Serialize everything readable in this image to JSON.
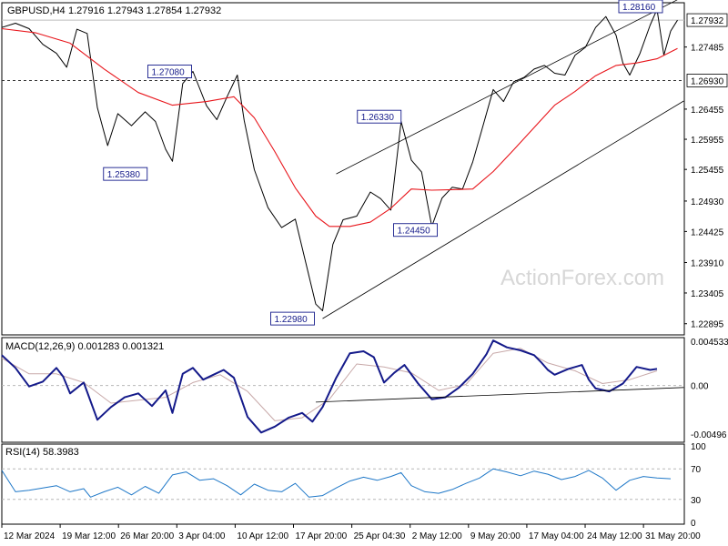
{
  "chart_data": {
    "type": "line",
    "symbol": "GBPUSD,H4",
    "ohlc_header": "1.27916 1.27943 1.27854 1.27932",
    "watermark": "ActionForex.com",
    "price_panel": {
      "ylim": [
        1.2271,
        1.2822
      ],
      "y_ticks": [
        "1.27932",
        "1.27485",
        "1.26930",
        "1.26455",
        "1.25955",
        "1.25455",
        "1.24930",
        "1.24425",
        "1.23910",
        "1.23405",
        "1.22895"
      ],
      "current_price": 1.27932,
      "current_price_label": "1.27932",
      "level_line": 1.2693,
      "level_line_label": "1.26930",
      "callouts": [
        {
          "label": "1.27080",
          "value": 1.2708,
          "t": 0.27
        },
        {
          "label": "1.25380",
          "value": 1.2538,
          "t": 0.205
        },
        {
          "label": "1.22980",
          "value": 1.2298,
          "t": 0.45
        },
        {
          "label": "1.26330",
          "value": 1.2633,
          "t": 0.577
        },
        {
          "label": "1.24450",
          "value": 1.2445,
          "t": 0.63
        },
        {
          "label": "1.28160",
          "value": 1.2816,
          "t": 0.96
        }
      ],
      "channel_upper": [
        [
          0.49,
          1.2538
        ],
        [
          0.99,
          1.2827
        ]
      ],
      "channel_lower": [
        [
          0.47,
          1.2298
        ],
        [
          0.999,
          1.2659
        ]
      ],
      "price_series": [
        [
          0.0,
          1.2781
        ],
        [
          0.02,
          1.2788
        ],
        [
          0.04,
          1.2779
        ],
        [
          0.06,
          1.2753
        ],
        [
          0.08,
          1.2738
        ],
        [
          0.095,
          1.2715
        ],
        [
          0.11,
          1.2778
        ],
        [
          0.125,
          1.2771
        ],
        [
          0.14,
          1.2648
        ],
        [
          0.155,
          1.2585
        ],
        [
          0.17,
          1.2638
        ],
        [
          0.19,
          1.2618
        ],
        [
          0.21,
          1.2641
        ],
        [
          0.225,
          1.2625
        ],
        [
          0.24,
          1.2579
        ],
        [
          0.25,
          1.2559
        ],
        [
          0.265,
          1.2688
        ],
        [
          0.28,
          1.2708
        ],
        [
          0.3,
          1.2651
        ],
        [
          0.315,
          1.2628
        ],
        [
          0.33,
          1.2666
        ],
        [
          0.345,
          1.2702
        ],
        [
          0.355,
          1.2627
        ],
        [
          0.37,
          1.2545
        ],
        [
          0.39,
          1.2482
        ],
        [
          0.41,
          1.2449
        ],
        [
          0.43,
          1.2463
        ],
        [
          0.445,
          1.2392
        ],
        [
          0.46,
          1.2322
        ],
        [
          0.47,
          1.2311
        ],
        [
          0.485,
          1.2421
        ],
        [
          0.5,
          1.2462
        ],
        [
          0.52,
          1.2468
        ],
        [
          0.54,
          1.2508
        ],
        [
          0.555,
          1.2497
        ],
        [
          0.57,
          1.2478
        ],
        [
          0.585,
          1.2625
        ],
        [
          0.6,
          1.2561
        ],
        [
          0.615,
          1.2541
        ],
        [
          0.63,
          1.2451
        ],
        [
          0.645,
          1.2498
        ],
        [
          0.66,
          1.2516
        ],
        [
          0.675,
          1.2513
        ],
        [
          0.69,
          1.2558
        ],
        [
          0.705,
          1.2618
        ],
        [
          0.72,
          1.2678
        ],
        [
          0.735,
          1.2658
        ],
        [
          0.75,
          1.2691
        ],
        [
          0.765,
          1.2698
        ],
        [
          0.78,
          1.2712
        ],
        [
          0.795,
          1.2718
        ],
        [
          0.81,
          1.2705
        ],
        [
          0.825,
          1.2702
        ],
        [
          0.84,
          1.2735
        ],
        [
          0.855,
          1.2748
        ],
        [
          0.87,
          1.2781
        ],
        [
          0.885,
          1.2799
        ],
        [
          0.9,
          1.2768
        ],
        [
          0.91,
          1.2722
        ],
        [
          0.92,
          1.2702
        ],
        [
          0.935,
          1.2738
        ],
        [
          0.95,
          1.2785
        ],
        [
          0.96,
          1.2811
        ],
        [
          0.97,
          1.2735
        ],
        [
          0.98,
          1.2775
        ],
        [
          0.99,
          1.2793
        ]
      ],
      "ma_series": [
        [
          0.0,
          1.2779
        ],
        [
          0.05,
          1.2772
        ],
        [
          0.1,
          1.2755
        ],
        [
          0.15,
          1.2712
        ],
        [
          0.2,
          1.2673
        ],
        [
          0.25,
          1.2652
        ],
        [
          0.3,
          1.2658
        ],
        [
          0.34,
          1.2666
        ],
        [
          0.37,
          1.2631
        ],
        [
          0.4,
          1.2575
        ],
        [
          0.43,
          1.2515
        ],
        [
          0.46,
          1.2468
        ],
        [
          0.48,
          1.2451
        ],
        [
          0.51,
          1.2451
        ],
        [
          0.54,
          1.2458
        ],
        [
          0.57,
          1.2481
        ],
        [
          0.6,
          1.2513
        ],
        [
          0.63,
          1.2511
        ],
        [
          0.66,
          1.2512
        ],
        [
          0.69,
          1.2513
        ],
        [
          0.72,
          1.2542
        ],
        [
          0.75,
          1.2578
        ],
        [
          0.78,
          1.2615
        ],
        [
          0.81,
          1.2652
        ],
        [
          0.84,
          1.2675
        ],
        [
          0.87,
          1.2701
        ],
        [
          0.9,
          1.2718
        ],
        [
          0.93,
          1.2722
        ],
        [
          0.96,
          1.2729
        ],
        [
          0.99,
          1.2746
        ]
      ]
    },
    "macd_panel": {
      "label": "MACD(12,26,9) 0.001283 0.001321",
      "ylim": [
        -0.0058,
        0.0049
      ],
      "y_ticks": [
        "0.004533",
        "0.00",
        "-0.00496"
      ],
      "zero_label": "0.00",
      "macd_series": [
        [
          0.0,
          0.0031
        ],
        [
          0.02,
          0.0018
        ],
        [
          0.04,
          -0.0001
        ],
        [
          0.06,
          0.0004
        ],
        [
          0.08,
          0.0018
        ],
        [
          0.09,
          0.0009
        ],
        [
          0.1,
          -0.0008
        ],
        [
          0.12,
          0.0003
        ],
        [
          0.14,
          -0.0035
        ],
        [
          0.16,
          -0.0022
        ],
        [
          0.18,
          -0.0012
        ],
        [
          0.2,
          -0.0008
        ],
        [
          0.22,
          -0.0021
        ],
        [
          0.24,
          -0.0005
        ],
        [
          0.25,
          -0.0028
        ],
        [
          0.265,
          0.0012
        ],
        [
          0.28,
          0.0018
        ],
        [
          0.295,
          0.0006
        ],
        [
          0.31,
          0.0011
        ],
        [
          0.325,
          0.0016
        ],
        [
          0.34,
          0.0008
        ],
        [
          0.36,
          -0.0032
        ],
        [
          0.38,
          -0.0048
        ],
        [
          0.4,
          -0.0042
        ],
        [
          0.42,
          -0.0033
        ],
        [
          0.44,
          -0.0028
        ],
        [
          0.455,
          -0.0037
        ],
        [
          0.47,
          -0.0022
        ],
        [
          0.49,
          0.0008
        ],
        [
          0.51,
          0.0033
        ],
        [
          0.53,
          0.0035
        ],
        [
          0.545,
          0.0029
        ],
        [
          0.56,
          0.0003
        ],
        [
          0.575,
          0.0013
        ],
        [
          0.59,
          0.0021
        ],
        [
          0.61,
          0.0002
        ],
        [
          0.63,
          -0.0014
        ],
        [
          0.65,
          -0.0012
        ],
        [
          0.67,
          -0.0002
        ],
        [
          0.69,
          0.0012
        ],
        [
          0.71,
          0.0032
        ],
        [
          0.72,
          0.0046
        ],
        [
          0.74,
          0.0039
        ],
        [
          0.76,
          0.0036
        ],
        [
          0.78,
          0.0031
        ],
        [
          0.79,
          0.0024
        ],
        [
          0.8,
          0.0016
        ],
        [
          0.81,
          0.0011
        ],
        [
          0.83,
          0.0017
        ],
        [
          0.85,
          0.0021
        ],
        [
          0.86,
          0.0006
        ],
        [
          0.87,
          -0.0003
        ],
        [
          0.89,
          -0.0006
        ],
        [
          0.91,
          0.0002
        ],
        [
          0.93,
          0.0019
        ],
        [
          0.95,
          0.0016
        ],
        [
          0.96,
          0.0017
        ]
      ],
      "signal_series": [
        [
          0.0,
          0.0028
        ],
        [
          0.04,
          0.0012
        ],
        [
          0.08,
          0.0012
        ],
        [
          0.12,
          0.0003
        ],
        [
          0.16,
          -0.0018
        ],
        [
          0.2,
          -0.0015
        ],
        [
          0.24,
          -0.0012
        ],
        [
          0.28,
          0.0003
        ],
        [
          0.32,
          0.0011
        ],
        [
          0.36,
          -0.0006
        ],
        [
          0.4,
          -0.0036
        ],
        [
          0.44,
          -0.0033
        ],
        [
          0.48,
          -0.0014
        ],
        [
          0.52,
          0.0022
        ],
        [
          0.56,
          0.0019
        ],
        [
          0.6,
          0.0013
        ],
        [
          0.64,
          -0.0005
        ],
        [
          0.68,
          0.0001
        ],
        [
          0.72,
          0.0033
        ],
        [
          0.76,
          0.0038
        ],
        [
          0.8,
          0.0023
        ],
        [
          0.84,
          0.0015
        ],
        [
          0.88,
          0.0002
        ],
        [
          0.92,
          0.0006
        ],
        [
          0.96,
          0.0015
        ]
      ],
      "trendline": [
        [
          0.46,
          -0.0017
        ],
        [
          0.999,
          -0.0002
        ]
      ]
    },
    "rsi_panel": {
      "label": "RSI(14) 58.3983",
      "ylim": [
        0,
        100
      ],
      "y_ticks": [
        "100",
        "70",
        "30",
        "0"
      ],
      "levels": [
        70,
        30
      ],
      "rsi_series": [
        [
          0.0,
          68
        ],
        [
          0.02,
          40
        ],
        [
          0.04,
          42
        ],
        [
          0.06,
          45
        ],
        [
          0.08,
          48
        ],
        [
          0.1,
          40
        ],
        [
          0.12,
          44
        ],
        [
          0.13,
          33
        ],
        [
          0.15,
          40
        ],
        [
          0.17,
          46
        ],
        [
          0.19,
          36
        ],
        [
          0.21,
          47
        ],
        [
          0.23,
          38
        ],
        [
          0.25,
          62
        ],
        [
          0.27,
          66
        ],
        [
          0.29,
          55
        ],
        [
          0.31,
          57
        ],
        [
          0.33,
          48
        ],
        [
          0.35,
          36
        ],
        [
          0.37,
          50
        ],
        [
          0.39,
          42
        ],
        [
          0.41,
          40
        ],
        [
          0.43,
          51
        ],
        [
          0.45,
          33
        ],
        [
          0.47,
          35
        ],
        [
          0.49,
          45
        ],
        [
          0.51,
          54
        ],
        [
          0.53,
          59
        ],
        [
          0.55,
          55
        ],
        [
          0.57,
          60
        ],
        [
          0.585,
          65
        ],
        [
          0.6,
          48
        ],
        [
          0.62,
          40
        ],
        [
          0.64,
          38
        ],
        [
          0.66,
          43
        ],
        [
          0.68,
          51
        ],
        [
          0.7,
          58
        ],
        [
          0.72,
          70
        ],
        [
          0.74,
          66
        ],
        [
          0.76,
          61
        ],
        [
          0.78,
          67
        ],
        [
          0.8,
          63
        ],
        [
          0.82,
          56
        ],
        [
          0.84,
          60
        ],
        [
          0.86,
          68
        ],
        [
          0.88,
          58
        ],
        [
          0.9,
          42
        ],
        [
          0.92,
          55
        ],
        [
          0.94,
          60
        ],
        [
          0.96,
          58
        ],
        [
          0.98,
          57
        ]
      ]
    },
    "x_ticks": [
      "12 Mar 2024",
      "19 Mar 12:00",
      "26 Mar 20:00",
      "3 Apr 04:00",
      "10 Apr 12:00",
      "17 Apr 20:00",
      "25 Apr 04:30",
      "2 May 12:00",
      "9 May 20:00",
      "17 May 04:00",
      "24 May 12:00",
      "31 May 20:00"
    ],
    "colors": {
      "price": "#000000",
      "ma": "#e8151b",
      "macd": "#141a8a",
      "signal": "#c8a9a9",
      "rsi": "#1f78c8",
      "level_dash": "#333333",
      "grid_dash": "#b7b7b7",
      "current_bg": "#ffffff",
      "callout_border": "#141a8a",
      "watermark": "#d7d7d7"
    }
  }
}
